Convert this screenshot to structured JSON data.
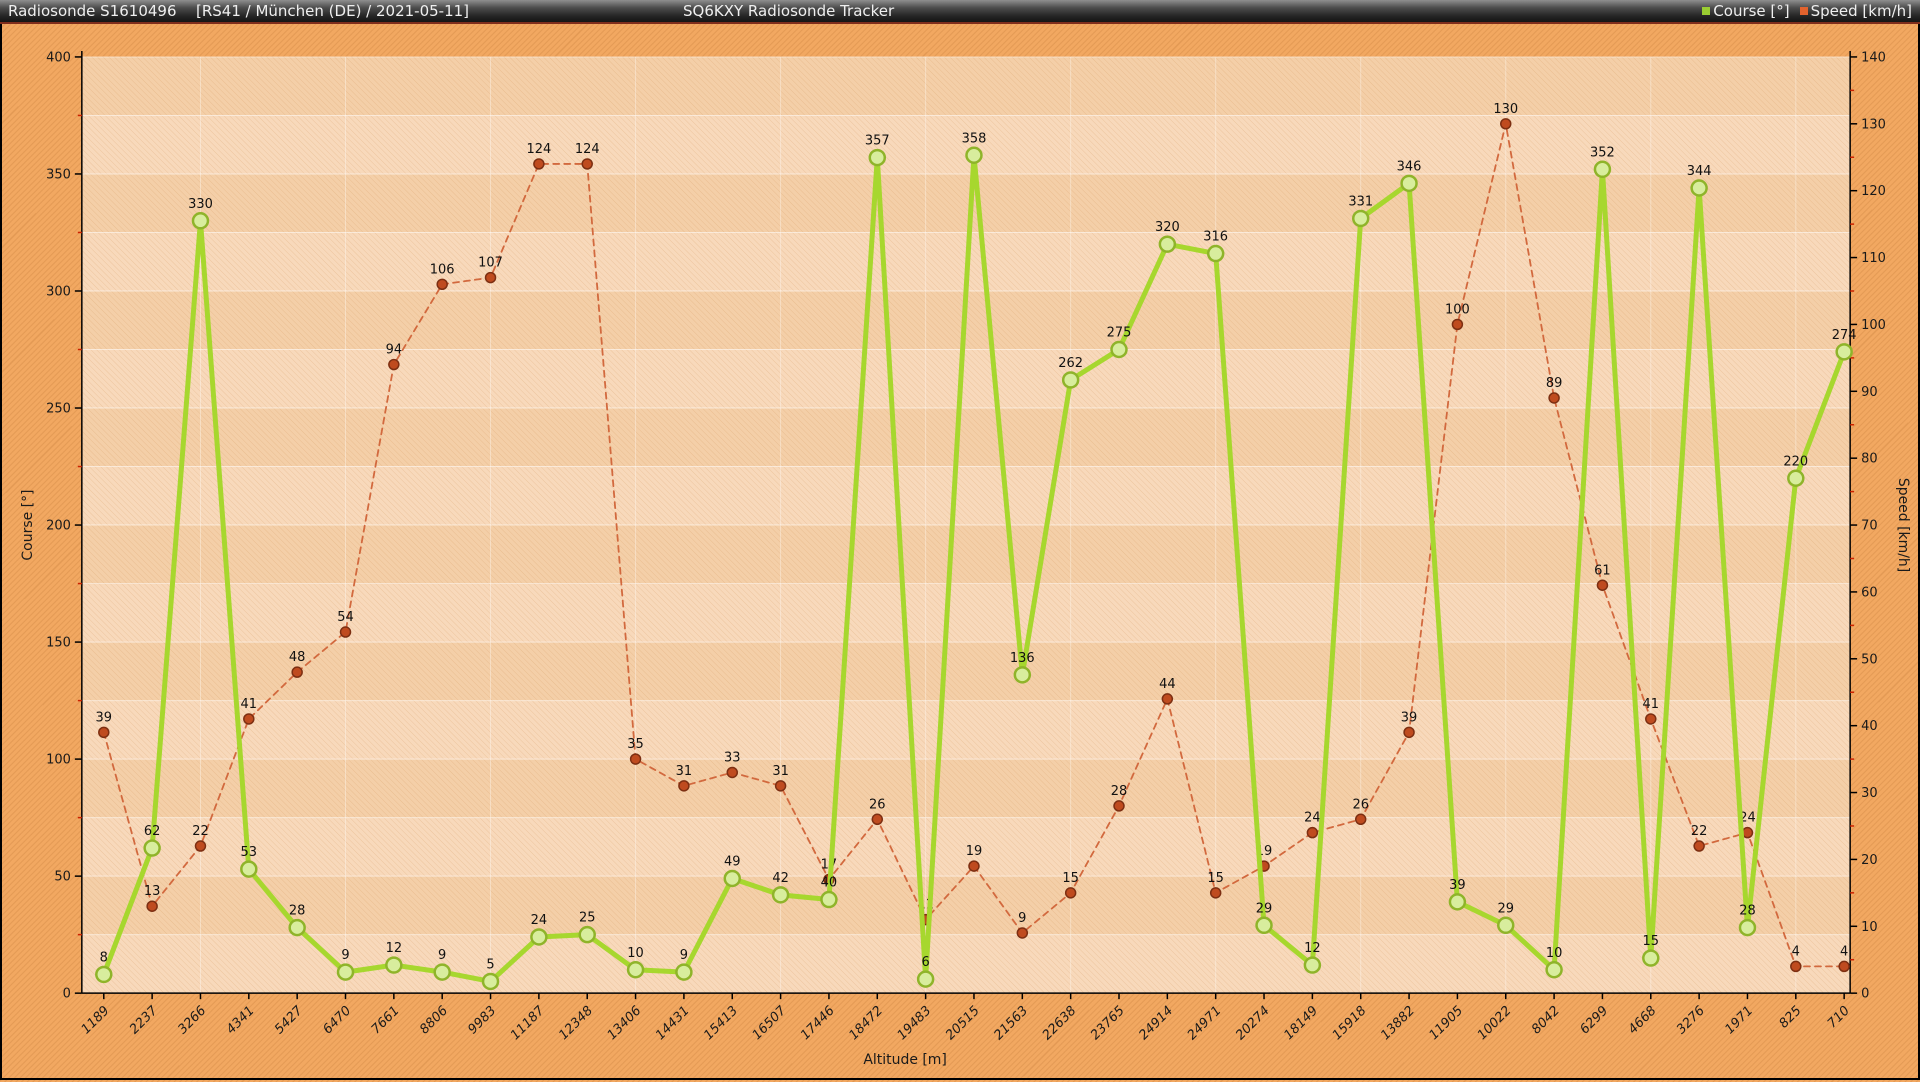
{
  "title_bar": {
    "app_title": "Radiosonde S1610496",
    "sonde_info": "[RS41 / München (DE) / 2021-05-11]",
    "tracker_title": "SQ6KXY Radiosonde Tracker",
    "legend": [
      {
        "label": "Course [°]",
        "color": "#9acd32"
      },
      {
        "label": "Speed [km/h]",
        "color": "#e2622d"
      }
    ]
  },
  "chart_data": {
    "type": "line",
    "title": "",
    "xlabel": "Altitude [m]",
    "grid": true,
    "legend_position": "top-right-titlebar",
    "categories": [
      1189,
      2237,
      3266,
      4341,
      5427,
      6470,
      7661,
      8806,
      9983,
      11187,
      12348,
      13406,
      14431,
      15413,
      16507,
      17446,
      18472,
      19483,
      20515,
      21563,
      22638,
      23765,
      24914,
      24971,
      20274,
      18149,
      15918,
      13882,
      11905,
      10022,
      8042,
      6299,
      4668,
      3276,
      1971,
      825,
      710
    ],
    "series": [
      {
        "name": "Course [°]",
        "axis": "left",
        "dashed": false,
        "line_color": "#a7d72e",
        "marker_fill": "#d8ed9d",
        "marker_stroke": "#8fb42a",
        "values": [
          8,
          62,
          330,
          53,
          28,
          9,
          12,
          9,
          5,
          24,
          25,
          10,
          9,
          49,
          42,
          40,
          357,
          6,
          358,
          136,
          262,
          275,
          320,
          316,
          29,
          12,
          331,
          346,
          39,
          29,
          10,
          352,
          15,
          344,
          28,
          220,
          274
        ]
      },
      {
        "name": "Speed [km/h]",
        "axis": "right",
        "dashed": true,
        "line_color": "#d2693e",
        "marker_fill": "#bf4b1f",
        "marker_stroke": "#7d2f12",
        "values": [
          39,
          13,
          22,
          41,
          48,
          54,
          94,
          106,
          107,
          124,
          124,
          35,
          31,
          33,
          31,
          17,
          26,
          11,
          19,
          9,
          15,
          28,
          44,
          15,
          19,
          24,
          26,
          39,
          100,
          130,
          89,
          61,
          41,
          22,
          24,
          4,
          4
        ]
      }
    ],
    "left_axis": {
      "label": "Course [°]",
      "min": 0,
      "max": 400,
      "major": 50,
      "minor": 25,
      "ticks": [
        0,
        50,
        100,
        150,
        200,
        250,
        300,
        350,
        400
      ]
    },
    "right_axis": {
      "label": "Speed [km/h]",
      "min": 0,
      "max": 140,
      "major": 10,
      "minor": 5,
      "ticks": [
        0,
        10,
        20,
        30,
        40,
        50,
        60,
        70,
        80,
        90,
        100,
        110,
        120,
        130,
        140
      ]
    },
    "colors": {
      "plot_band_light": "#f8d9bb",
      "plot_band_dark": "#f4cfa8",
      "gridline": "rgba(255,255,255,0.55)",
      "axis_line": "#000000",
      "minor_tick": "#cc2200",
      "data_label": "#111111"
    }
  }
}
